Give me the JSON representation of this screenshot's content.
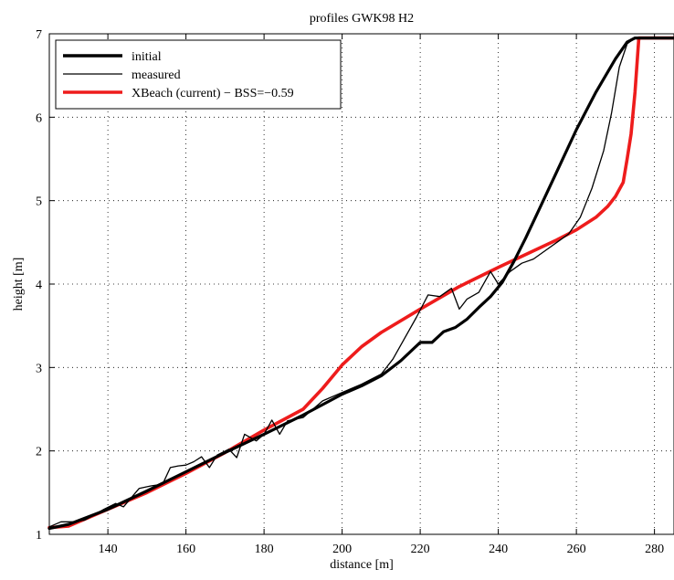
{
  "chart_data": {
    "type": "line",
    "title": "profiles GWK98 H2",
    "xlabel": "distance [m]",
    "ylabel": "height [m]",
    "xlim": [
      125,
      285
    ],
    "ylim": [
      1,
      7
    ],
    "xticks": [
      140,
      160,
      180,
      200,
      220,
      240,
      260,
      280
    ],
    "yticks": [
      1,
      2,
      3,
      4,
      5,
      6,
      7
    ],
    "grid": true,
    "legend_position": "top-left",
    "series": [
      {
        "name": "initial",
        "color": "#000000",
        "style": "thick",
        "x": [
          125,
          130,
          140,
          150,
          160,
          170,
          180,
          190,
          200,
          205,
          210,
          215,
          220,
          223,
          226,
          229,
          232,
          235,
          238,
          241,
          244,
          247,
          250,
          255,
          260,
          265,
          270,
          273,
          275,
          276,
          285
        ],
        "y": [
          1.07,
          1.12,
          1.3,
          1.52,
          1.75,
          1.98,
          2.2,
          2.43,
          2.68,
          2.78,
          2.9,
          3.08,
          3.3,
          3.3,
          3.43,
          3.48,
          3.58,
          3.72,
          3.85,
          4.02,
          4.27,
          4.55,
          4.85,
          5.35,
          5.85,
          6.3,
          6.7,
          6.9,
          6.95,
          6.95,
          6.95
        ]
      },
      {
        "name": "measured",
        "color": "#000000",
        "style": "thin",
        "x": [
          125,
          128,
          131,
          134,
          136,
          139,
          142,
          144,
          146,
          148,
          151,
          154,
          156,
          158,
          160,
          162,
          164,
          166,
          168,
          171,
          173,
          175,
          178,
          180,
          182,
          184,
          186,
          190,
          195,
          200,
          205,
          210,
          213,
          216,
          219,
          222,
          225,
          228,
          230,
          232,
          235,
          238,
          240,
          243,
          246,
          249,
          252,
          255,
          258,
          261,
          264,
          267,
          269,
          271,
          273,
          275,
          277,
          280,
          285
        ],
        "y": [
          1.09,
          1.15,
          1.15,
          1.17,
          1.22,
          1.3,
          1.37,
          1.33,
          1.44,
          1.55,
          1.58,
          1.6,
          1.8,
          1.82,
          1.83,
          1.87,
          1.93,
          1.8,
          1.95,
          2.02,
          1.92,
          2.2,
          2.12,
          2.2,
          2.37,
          2.2,
          2.36,
          2.4,
          2.6,
          2.7,
          2.8,
          2.92,
          3.1,
          3.35,
          3.6,
          3.87,
          3.85,
          3.95,
          3.7,
          3.82,
          3.9,
          4.15,
          4.0,
          4.15,
          4.25,
          4.3,
          4.4,
          4.5,
          4.6,
          4.8,
          5.15,
          5.6,
          6.05,
          6.6,
          6.88,
          6.95,
          6.95,
          6.95,
          6.95
        ]
      },
      {
        "name": "XBeach (current) − BSS=−0.59",
        "color": "#ee1c1c",
        "style": "thick",
        "x": [
          125,
          130,
          140,
          150,
          160,
          170,
          180,
          190,
          195,
          200,
          205,
          210,
          220,
          230,
          240,
          250,
          255,
          260,
          265,
          268,
          270,
          272,
          273,
          274,
          275,
          276,
          277,
          280,
          285
        ],
        "y": [
          1.08,
          1.1,
          1.3,
          1.5,
          1.73,
          1.98,
          2.25,
          2.5,
          2.75,
          3.03,
          3.25,
          3.42,
          3.7,
          3.97,
          4.2,
          4.42,
          4.53,
          4.65,
          4.8,
          4.93,
          5.05,
          5.22,
          5.5,
          5.8,
          6.3,
          6.95,
          6.95,
          6.95,
          6.95
        ]
      }
    ]
  }
}
